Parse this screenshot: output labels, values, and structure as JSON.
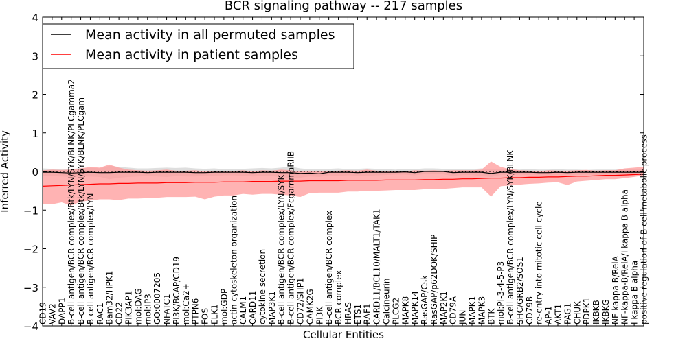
{
  "chart_data": {
    "type": "line",
    "title": "BCR signaling pathway -- 217 samples",
    "xlabel": "Cellular Entities",
    "ylabel": "Inferred Activity",
    "ylim": [
      -4,
      4
    ],
    "yticks": [
      -4,
      -3,
      -2,
      -1,
      0,
      1,
      2,
      3,
      4
    ],
    "ytick_labels": [
      "−4",
      "−3",
      "−2",
      "−1",
      "0",
      "1",
      "2",
      "3",
      "4"
    ],
    "legend_position": "top-left",
    "categories": [
      "CD19",
      "VAV2",
      "DAPP1",
      "B-cell antigen/BCR complex/Btk/LYN/SYK/BLNK/PLCgamma2",
      "B-cell antigen/BCR complex/Btk/LYN/SYK/BLNK/PLCgam",
      "B-cell antigen/BCR complex/LYN",
      "RAC1",
      "Bam32/HPK1",
      "CD22",
      "PIK3AP1",
      "mol:DAG",
      "mol:IP3",
      "GO:0007205",
      "NFATC1",
      "PI3K/BCAP/CD19",
      "mol:Ca2+",
      "PTPN6",
      "FOS",
      "ELK1",
      "mol:GDP",
      "actin cytoskeleton organization",
      "CALM1",
      "CARD11",
      "cytokine secretion",
      "MAP3K1",
      "B-cell antigen/BCR complex/LYN/SYK",
      "B-cell antigen/BCR complex/FcgammaRIIB",
      "CD72/SHP1",
      "CAMK2G",
      "PI3K",
      "B-cell antigen/BCR complex",
      "BCR complex",
      "HRAS",
      "ETS1",
      "RAF1",
      "CARD11/BCL10/MALT1/TAK1",
      "Calcineurin",
      "PLCG2",
      "MAPK8",
      "MAPK14",
      "RasGAP/Csk",
      "RasGAP/p62DOK/SHIP",
      "MAP2K1",
      "CD79A",
      "JUN",
      "MAPK1",
      "MAPK3",
      "BTK",
      "mol:PI-3-4-5-P3",
      "B-cell antigen/BCR complex/LYN/SYK/BLNK",
      "SHC/GRB2/SOS1",
      "CD79B",
      "re-entry into mitotic cell cycle",
      "AP-1",
      "AKT1",
      "PAG1",
      "CHUK",
      "PDPK1",
      "IKBKB",
      "IKBKG",
      "NF-kappa-B/RelA",
      "NF-kappa-B/RelA/I kappa B alpha",
      "I kappa B alpha",
      "positive regulation of B cell metabolic process"
    ],
    "series": [
      {
        "name": "Mean activity in all permuted samples",
        "color": "#000000",
        "values": [
          -0.02,
          -0.02,
          -0.03,
          -0.04,
          -0.03,
          -0.02,
          -0.03,
          -0.03,
          -0.02,
          -0.02,
          -0.02,
          -0.03,
          -0.02,
          -0.02,
          -0.02,
          -0.02,
          -0.03,
          -0.03,
          -0.02,
          -0.02,
          -0.02,
          -0.02,
          -0.03,
          -0.02,
          -0.02,
          -0.03,
          -0.03,
          -0.05,
          -0.04,
          -0.06,
          -0.02,
          -0.02,
          -0.02,
          -0.03,
          -0.02,
          -0.02,
          -0.02,
          -0.02,
          -0.01,
          -0.03,
          0.0,
          0.0,
          0.0,
          -0.03,
          -0.02,
          -0.02,
          -0.02,
          -0.05,
          -0.02,
          -0.02,
          -0.02,
          -0.02,
          -0.03,
          -0.03,
          -0.02,
          -0.03,
          -0.02,
          -0.02,
          -0.02,
          -0.02,
          -0.02,
          -0.02,
          -0.02,
          -0.02
        ],
        "upper": [
          0.08,
          0.07,
          0.07,
          0.06,
          0.09,
          0.1,
          0.08,
          0.15,
          0.12,
          0.1,
          0.08,
          0.08,
          0.09,
          0.1,
          0.09,
          0.1,
          0.08,
          0.07,
          0.08,
          0.06,
          0.06,
          0.07,
          0.08,
          0.09,
          0.08,
          0.1,
          0.13,
          0.08,
          0.06,
          0.06,
          0.07,
          0.08,
          0.06,
          0.07,
          0.08,
          0.07,
          0.06,
          0.05,
          0.07,
          0.06,
          0.08,
          0.08,
          0.07,
          0.07,
          0.06,
          0.06,
          0.08,
          0.06,
          0.07,
          0.06,
          0.05,
          0.06,
          0.05,
          0.05,
          0.06,
          0.05,
          0.05,
          0.04,
          0.05,
          0.05,
          0.05,
          0.06,
          0.06,
          0.07
        ],
        "lower": [
          -0.11,
          -0.12,
          -0.13,
          -0.14,
          -0.13,
          -0.13,
          -0.14,
          -0.2,
          -0.16,
          -0.14,
          -0.13,
          -0.12,
          -0.13,
          -0.14,
          -0.12,
          -0.13,
          -0.13,
          -0.12,
          -0.12,
          -0.1,
          -0.1,
          -0.11,
          -0.13,
          -0.12,
          -0.12,
          -0.14,
          -0.18,
          -0.16,
          -0.13,
          -0.14,
          -0.1,
          -0.11,
          -0.1,
          -0.11,
          -0.11,
          -0.1,
          -0.09,
          -0.08,
          -0.08,
          -0.1,
          -0.07,
          -0.07,
          -0.07,
          -0.12,
          -0.09,
          -0.09,
          -0.12,
          -0.14,
          -0.09,
          -0.09,
          -0.08,
          -0.09,
          -0.1,
          -0.1,
          -0.09,
          -0.1,
          -0.09,
          -0.08,
          -0.09,
          -0.08,
          -0.08,
          -0.09,
          -0.09,
          -0.09
        ]
      },
      {
        "name": "Mean activity in patient samples",
        "color": "#ff0000",
        "values": [
          -0.38,
          -0.37,
          -0.36,
          -0.35,
          -0.34,
          -0.33,
          -0.32,
          -0.32,
          -0.31,
          -0.31,
          -0.3,
          -0.3,
          -0.3,
          -0.29,
          -0.29,
          -0.29,
          -0.28,
          -0.28,
          -0.28,
          -0.27,
          -0.27,
          -0.27,
          -0.26,
          -0.26,
          -0.26,
          -0.25,
          -0.25,
          -0.25,
          -0.24,
          -0.24,
          -0.24,
          -0.24,
          -0.23,
          -0.23,
          -0.23,
          -0.23,
          -0.22,
          -0.22,
          -0.22,
          -0.22,
          -0.21,
          -0.21,
          -0.2,
          -0.2,
          -0.19,
          -0.19,
          -0.18,
          -0.17,
          -0.17,
          -0.16,
          -0.16,
          -0.15,
          -0.15,
          -0.14,
          -0.14,
          -0.13,
          -0.12,
          -0.12,
          -0.11,
          -0.1,
          -0.1,
          -0.09,
          -0.08,
          -0.07
        ],
        "upper": [
          0.03,
          0.05,
          0.04,
          0.05,
          0.08,
          0.12,
          0.1,
          0.18,
          0.1,
          0.05,
          0.03,
          0.02,
          0.03,
          0.05,
          0.02,
          0.02,
          0.03,
          0.0,
          0.02,
          0.0,
          0.01,
          0.03,
          0.0,
          0.03,
          0.02,
          0.05,
          0.03,
          0.0,
          0.02,
          0.0,
          0.0,
          0.02,
          0.03,
          0.02,
          0.05,
          0.02,
          0.01,
          0.0,
          0.0,
          0.03,
          0.02,
          0.03,
          0.02,
          0.03,
          0.03,
          0.03,
          0.05,
          0.26,
          0.12,
          0.06,
          0.03,
          0.02,
          0.0,
          0.03,
          0.02,
          0.02,
          0.03,
          0.04,
          0.02,
          0.03,
          0.03,
          0.08,
          0.1,
          0.12
        ],
        "lower": [
          -0.85,
          -0.85,
          -0.8,
          -0.88,
          -0.78,
          -0.75,
          -0.72,
          -0.72,
          -0.74,
          -0.7,
          -0.7,
          -0.69,
          -0.68,
          -0.66,
          -0.66,
          -0.66,
          -0.65,
          -0.72,
          -0.65,
          -0.62,
          -0.62,
          -0.58,
          -0.6,
          -0.58,
          -0.58,
          -0.6,
          -0.62,
          -0.66,
          -0.56,
          -0.55,
          -0.55,
          -0.55,
          -0.52,
          -0.52,
          -0.5,
          -0.5,
          -0.49,
          -0.48,
          -0.48,
          -0.48,
          -0.46,
          -0.46,
          -0.45,
          -0.43,
          -0.41,
          -0.41,
          -0.41,
          -0.65,
          -0.38,
          -0.36,
          -0.34,
          -0.32,
          -0.31,
          -0.29,
          -0.28,
          -0.35,
          -0.26,
          -0.24,
          -0.22,
          -0.2,
          -0.2,
          -0.17,
          -0.14,
          -0.1
        ]
      }
    ],
    "band_colors": {
      "permuted": "#c8c8c8",
      "patient": "#ff9a9a"
    }
  }
}
